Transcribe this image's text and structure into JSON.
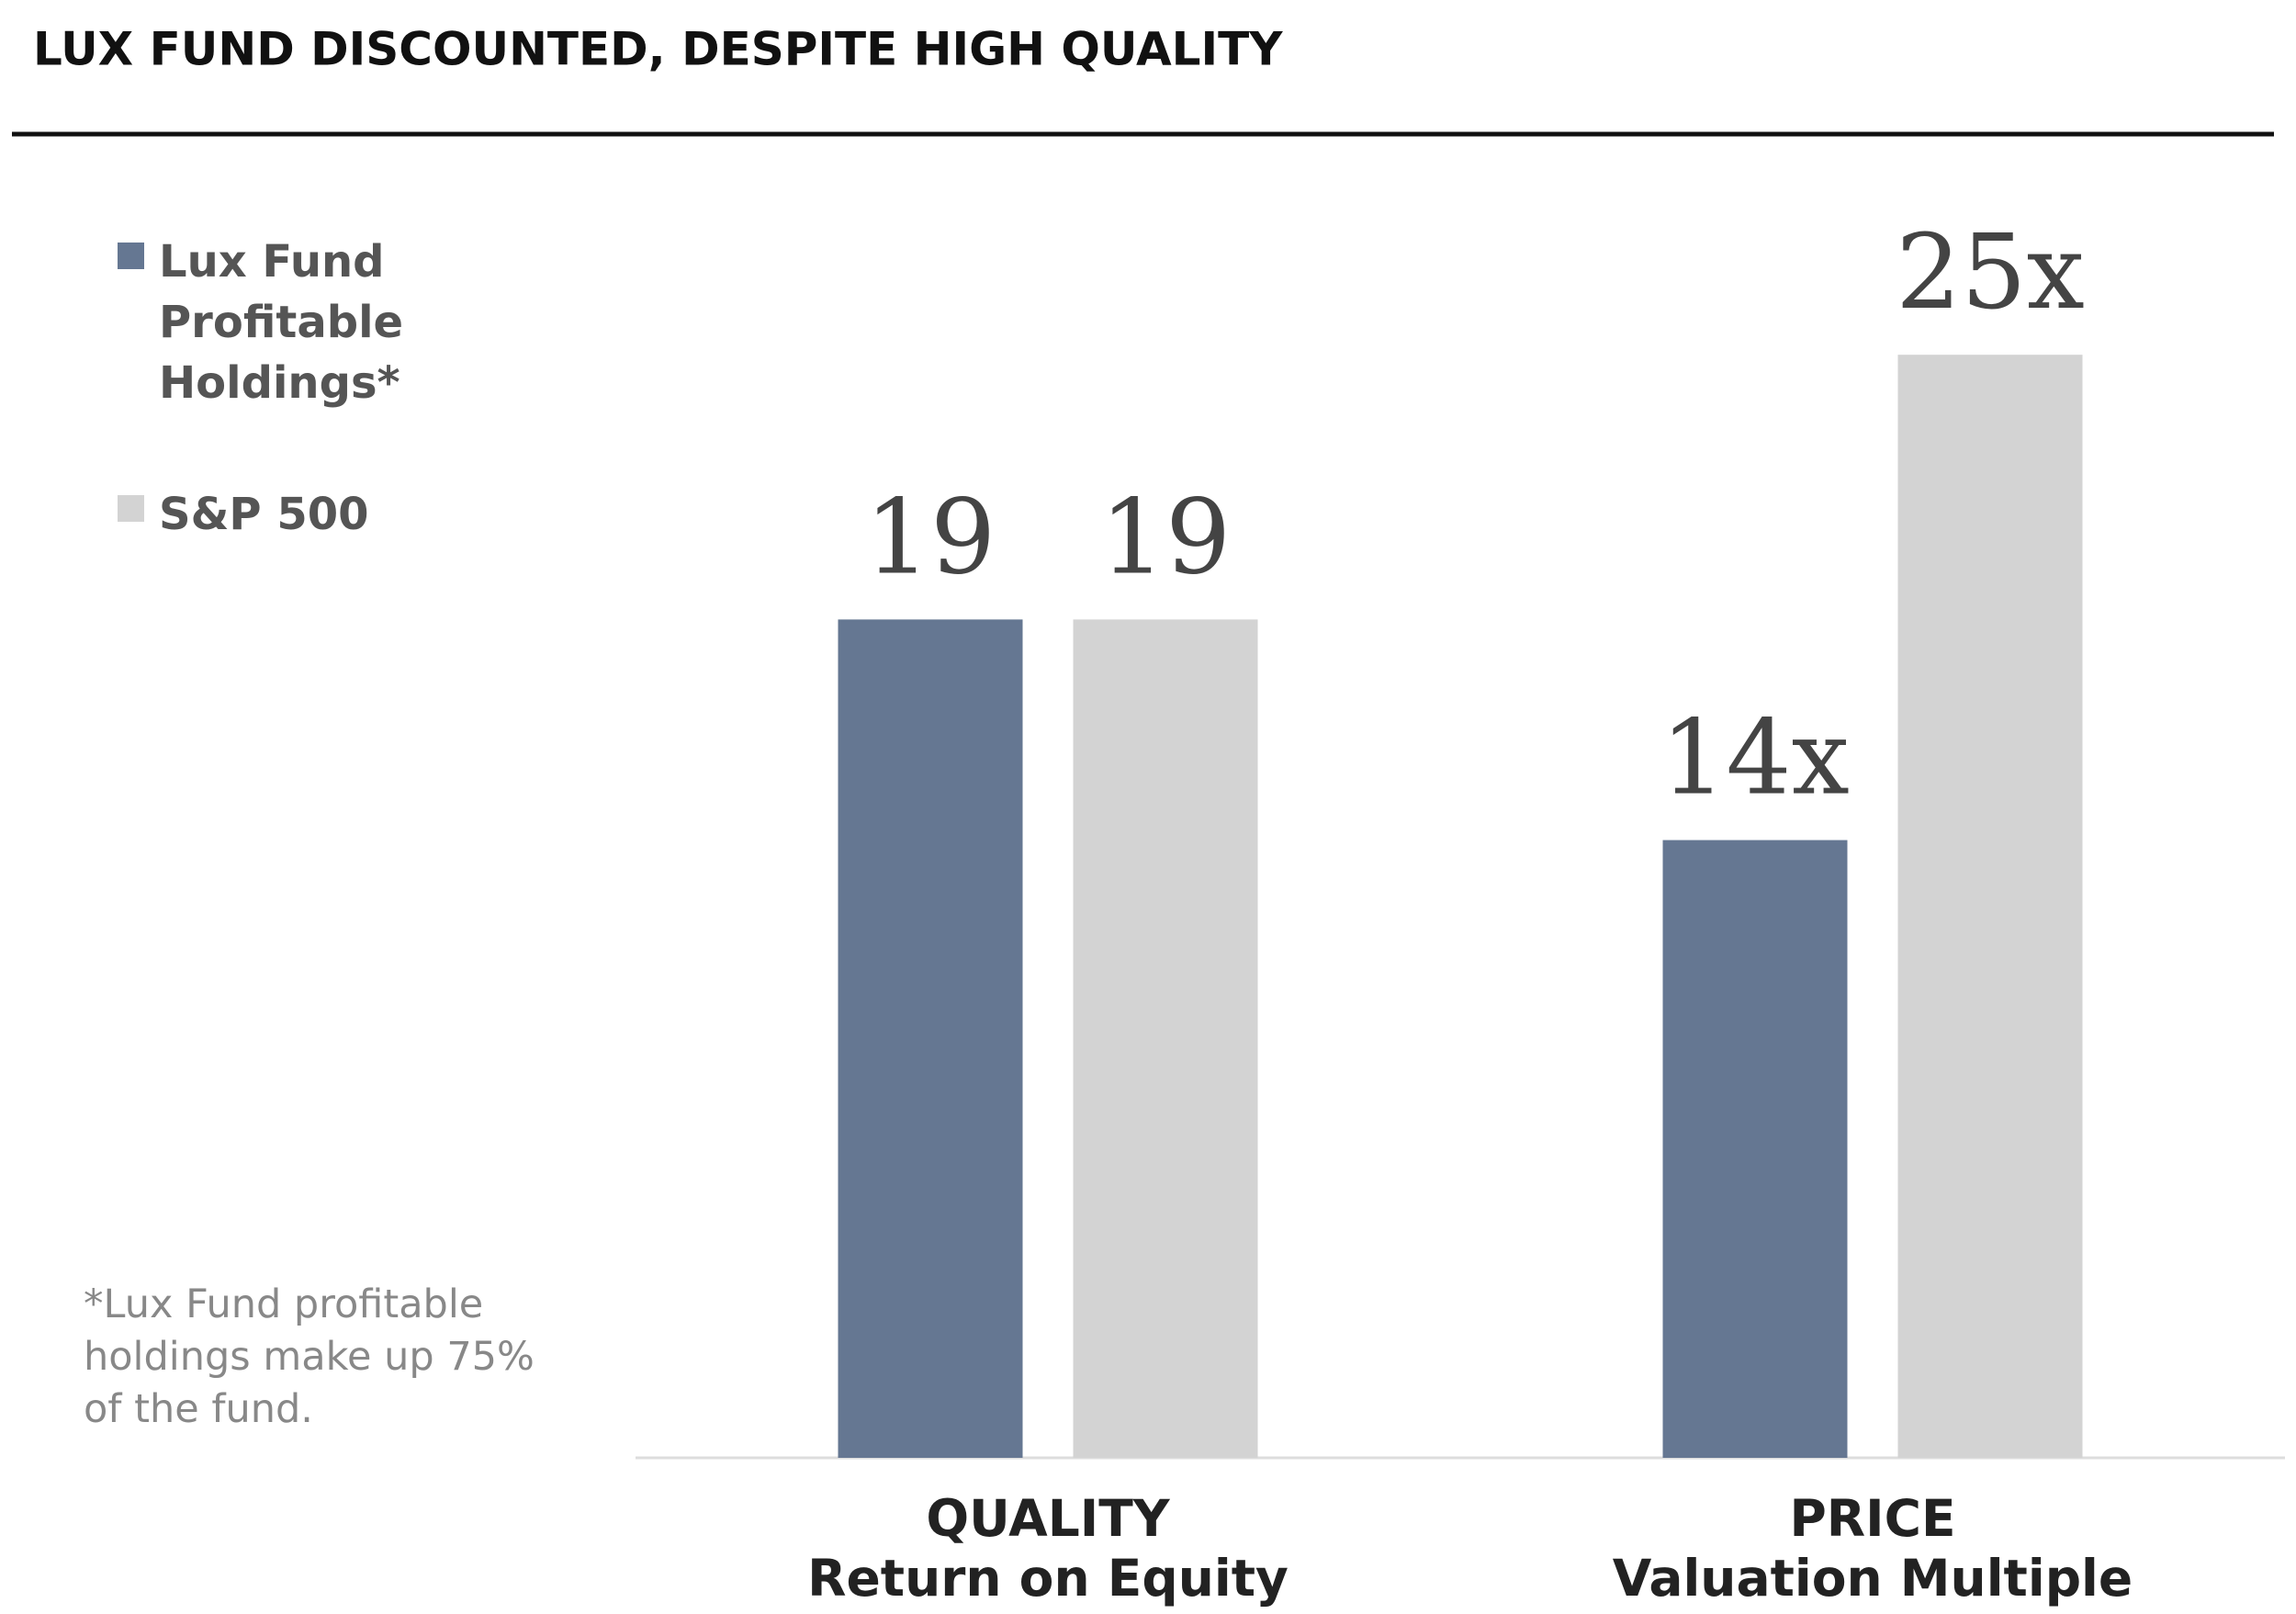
{
  "chart_data": {
    "type": "bar",
    "title": "LUX FUND DISCOUNTED, DESPITE HIGH QUALITY",
    "categories": [
      [
        "QUALITY",
        "Return on Equity"
      ],
      [
        "PRICE",
        "Valuation Multiple"
      ]
    ],
    "series": [
      {
        "name": "Lux Fund Profitable Holdings*",
        "color": "#657792",
        "values": [
          19,
          14
        ],
        "value_labels": [
          "19",
          "14x"
        ]
      },
      {
        "name": "S&P 500",
        "color": "#d3d3d3",
        "values": [
          19,
          25
        ],
        "value_labels": [
          "19",
          "25x"
        ]
      }
    ],
    "ylim": [
      0,
      30
    ],
    "footnote": "*Lux Fund profitable holdings make up 75% of the fund."
  }
}
